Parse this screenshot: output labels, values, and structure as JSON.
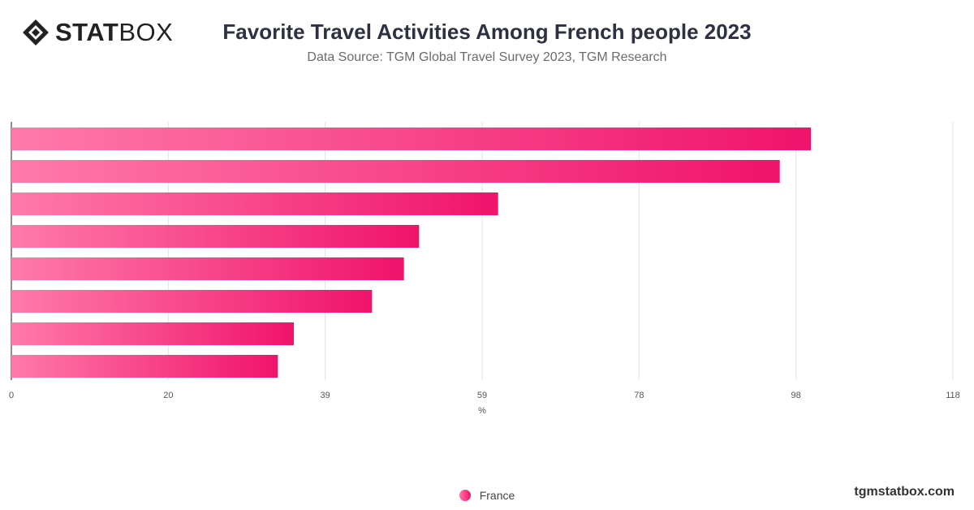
{
  "brand": {
    "logo_bold": "STAT",
    "logo_light": "BOX",
    "logo_icon": "diamond-logo-icon",
    "watermark": "tgmstatbox.com"
  },
  "header": {
    "title": "Favorite Travel Activities Among French people 2023",
    "subtitle": "Data Source: TGM Global Travel Survey 2023, TGM Research"
  },
  "chart_data": {
    "type": "bar",
    "orientation": "horizontal",
    "title": "Favorite Travel Activities Among French people 2023",
    "subtitle": "Data Source: TGM Global Travel Survey 2023, TGM Research",
    "xlabel": "%",
    "xlim": [
      0,
      118
    ],
    "xticks": [
      "0",
      "20",
      "39",
      "59",
      "78",
      "98",
      "118"
    ],
    "grid": true,
    "legend_position": "bottom",
    "category_labels_visible": false,
    "series": [
      {
        "name": "France",
        "values": [
          100.2,
          96.3,
          61.0,
          51.1,
          49.2,
          45.2,
          35.4,
          33.4
        ]
      }
    ],
    "colors": {
      "gradient_start": "#ff7aa9",
      "gradient_end": "#f0136b"
    }
  }
}
